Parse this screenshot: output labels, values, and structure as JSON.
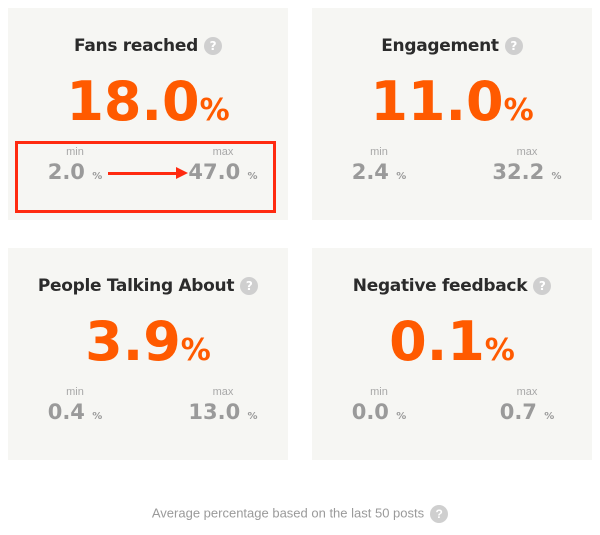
{
  "accent_color": "#ff5a00",
  "highlight_color": "#ff2a10",
  "metrics": [
    {
      "title": "Fans reached",
      "value": "18.0",
      "unit": "%",
      "min_label": "min",
      "min": "2.0",
      "max_label": "max",
      "max": "47.0",
      "help_icon": "question-circle-icon"
    },
    {
      "title": "Engagement",
      "value": "11.0",
      "unit": "%",
      "min_label": "min",
      "min": "2.4",
      "max_label": "max",
      "max": "32.2",
      "help_icon": "question-circle-icon"
    },
    {
      "title": "People Talking About",
      "value": "3.9",
      "unit": "%",
      "min_label": "min",
      "min": "0.4",
      "max_label": "max",
      "max": "13.0",
      "help_icon": "question-circle-icon"
    },
    {
      "title": "Negative feedback",
      "value": "0.1",
      "unit": "%",
      "min_label": "min",
      "min": "0.0",
      "max_label": "max",
      "max": "0.7",
      "help_icon": "question-circle-icon"
    }
  ],
  "help_glyph": "?",
  "footer": "Average percentage based on the last 50 posts"
}
